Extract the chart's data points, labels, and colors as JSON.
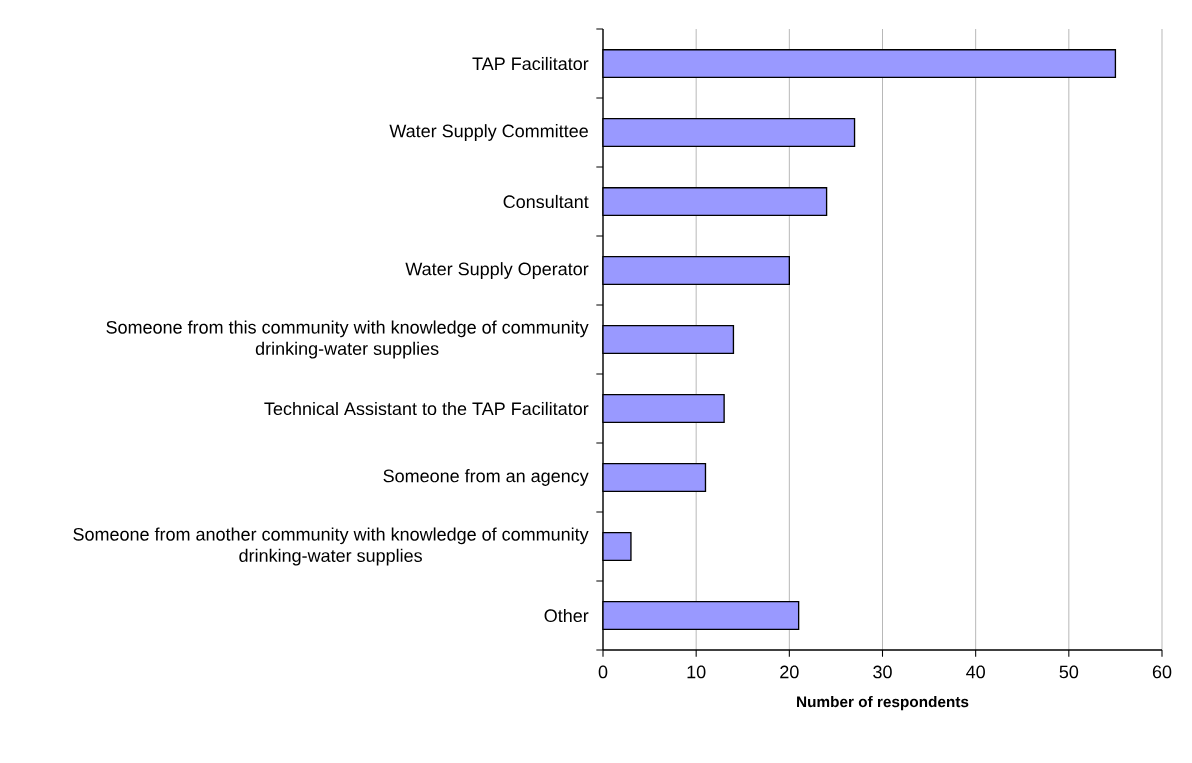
{
  "chart_data": {
    "type": "bar",
    "orientation": "horizontal",
    "categories": [
      "TAP Facilitator",
      "Water Supply Committee",
      "Consultant",
      "Water Supply Operator",
      "Someone from this community with knowledge of community drinking-water supplies",
      "Technical Assistant to the TAP Facilitator",
      "Someone from an agency",
      "Someone from another community with knowledge of community drinking-water supplies",
      "Other"
    ],
    "values": [
      55,
      27,
      24,
      20,
      14,
      13,
      11,
      3,
      21
    ],
    "color": "#9999ff",
    "xlabel": "Number of respondents",
    "xlim": [
      0,
      60
    ],
    "xticks": [
      0,
      10,
      20,
      30,
      40,
      50,
      60
    ],
    "grid": "x"
  }
}
